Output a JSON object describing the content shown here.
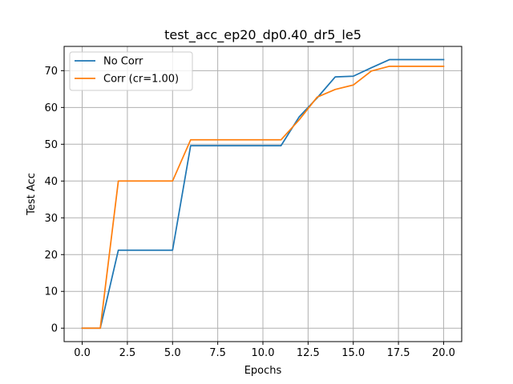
{
  "chart_data": {
    "type": "line",
    "title": "test_acc_ep20_dp0.40_dr5_le5",
    "xlabel": "Epochs",
    "ylabel": "Test Acc",
    "xlim": [
      -1,
      21
    ],
    "ylim": [
      -3.65,
      76.6
    ],
    "grid": true,
    "legend_position": "top-left",
    "x_ticks": [
      0,
      2.5,
      5,
      7.5,
      10,
      12.5,
      15,
      17.5,
      20
    ],
    "x_tick_labels": [
      "0.0",
      "2.5",
      "5.0",
      "7.5",
      "10.0",
      "12.5",
      "15.0",
      "17.5",
      "20.0"
    ],
    "y_ticks": [
      0,
      10,
      20,
      30,
      40,
      50,
      60,
      70
    ],
    "y_tick_labels": [
      "0",
      "10",
      "20",
      "30",
      "40",
      "50",
      "60",
      "70"
    ],
    "x": [
      0,
      1,
      2,
      3,
      4,
      5,
      6,
      7,
      8,
      9,
      10,
      11,
      12,
      13,
      14,
      15,
      16,
      17,
      18,
      19,
      20
    ],
    "series": [
      {
        "name": "No Corr",
        "color": "#1f77b4",
        "values": [
          0,
          0,
          21.2,
          21.2,
          21.2,
          21.2,
          49.6,
          49.6,
          49.6,
          49.6,
          49.6,
          49.6,
          57.4,
          62.6,
          68.3,
          68.5,
          70.8,
          73.0,
          73.0,
          73.0,
          73.0
        ]
      },
      {
        "name": "Corr (cr=1.00)",
        "color": "#ff7f0e",
        "values": [
          0,
          0,
          40.0,
          40.0,
          40.0,
          40.0,
          51.2,
          51.2,
          51.2,
          51.2,
          51.2,
          51.2,
          56.6,
          62.8,
          64.9,
          66.1,
          69.9,
          71.2,
          71.2,
          71.2,
          71.2
        ]
      }
    ]
  }
}
